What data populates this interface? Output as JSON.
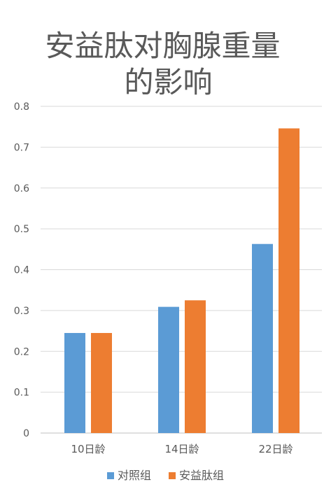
{
  "colors": {
    "series1": "#5B9BD5",
    "series2": "#ED7D31",
    "grid": "#D9D9D9",
    "text": "#595959"
  },
  "chart_data": {
    "type": "bar",
    "title_lines": [
      "安益肽对胸腺重量",
      "的影响"
    ],
    "categories": [
      "10日龄",
      "14日龄",
      "22日龄"
    ],
    "series": [
      {
        "name": "对照组",
        "values": [
          0.245,
          0.309,
          0.463
        ]
      },
      {
        "name": "安益肽组",
        "values": [
          0.245,
          0.325,
          0.746
        ]
      }
    ],
    "ylim": [
      0,
      0.8
    ],
    "yticks": [
      "0",
      "0.1",
      "0.2",
      "0.3",
      "0.4",
      "0.5",
      "0.6",
      "0.7",
      "0.8"
    ],
    "grid": true,
    "legend_position": "bottom"
  }
}
